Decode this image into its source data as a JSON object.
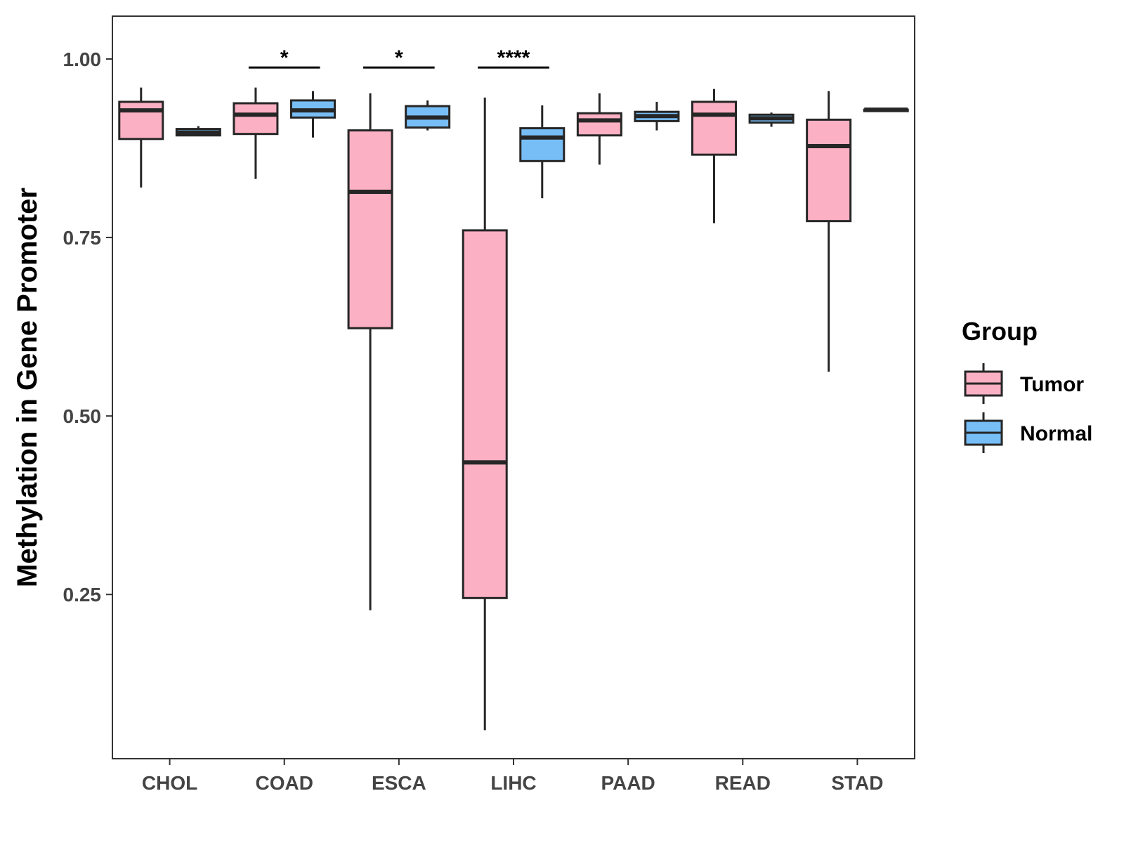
{
  "chart_data": {
    "type": "boxplot",
    "title": "",
    "xlabel": "",
    "ylabel": "Methylation in Gene Promoter",
    "ylim": [
      0.02,
      1.06
    ],
    "yticks": [
      0.25,
      0.5,
      0.75,
      1.0
    ],
    "ytick_labels": [
      "0.25",
      "0.50",
      "0.75",
      "1.00"
    ],
    "categories": [
      "CHOL",
      "COAD",
      "ESCA",
      "LIHC",
      "PAAD",
      "READ",
      "STAD"
    ],
    "legend": {
      "title": "Group",
      "position": "right",
      "entries": [
        {
          "name": "Tumor",
          "color": "#FBB0C3"
        },
        {
          "name": "Normal",
          "color": "#78BEF6"
        }
      ]
    },
    "series": [
      {
        "name": "Tumor",
        "color": "#FBB0C3",
        "boxes": [
          {
            "category": "CHOL",
            "min": 0.82,
            "q1": 0.888,
            "median": 0.928,
            "q3": 0.94,
            "max": 0.96
          },
          {
            "category": "COAD",
            "min": 0.832,
            "q1": 0.895,
            "median": 0.922,
            "q3": 0.938,
            "max": 0.96
          },
          {
            "category": "ESCA",
            "min": 0.228,
            "q1": 0.623,
            "median": 0.814,
            "q3": 0.9,
            "max": 0.952
          },
          {
            "category": "LIHC",
            "min": 0.06,
            "q1": 0.245,
            "median": 0.435,
            "q3": 0.76,
            "max": 0.946
          },
          {
            "category": "PAAD",
            "min": 0.852,
            "q1": 0.893,
            "median": 0.914,
            "q3": 0.924,
            "max": 0.952
          },
          {
            "category": "READ",
            "min": 0.77,
            "q1": 0.866,
            "median": 0.922,
            "q3": 0.94,
            "max": 0.958
          },
          {
            "category": "STAD",
            "min": 0.562,
            "q1": 0.773,
            "median": 0.878,
            "q3": 0.915,
            "max": 0.955
          }
        ]
      },
      {
        "name": "Normal",
        "color": "#78BEF6",
        "boxes": [
          {
            "category": "CHOL",
            "min": 0.893,
            "q1": 0.893,
            "median": 0.897,
            "q3": 0.902,
            "max": 0.906
          },
          {
            "category": "COAD",
            "min": 0.89,
            "q1": 0.918,
            "median": 0.928,
            "q3": 0.942,
            "max": 0.955
          },
          {
            "category": "ESCA",
            "min": 0.9,
            "q1": 0.904,
            "median": 0.918,
            "q3": 0.934,
            "max": 0.942
          },
          {
            "category": "LIHC",
            "min": 0.805,
            "q1": 0.857,
            "median": 0.89,
            "q3": 0.903,
            "max": 0.935
          },
          {
            "category": "PAAD",
            "min": 0.9,
            "q1": 0.913,
            "median": 0.92,
            "q3": 0.926,
            "max": 0.94
          },
          {
            "category": "READ",
            "min": 0.905,
            "q1": 0.911,
            "median": 0.917,
            "q3": 0.922,
            "max": 0.925
          },
          {
            "category": "STAD",
            "min": 0.929,
            "q1": 0.929,
            "median": 0.929,
            "q3": 0.929,
            "max": 0.929
          }
        ]
      }
    ],
    "annotations": [
      {
        "category": "COAD",
        "label": "*"
      },
      {
        "category": "ESCA",
        "label": "*"
      },
      {
        "category": "LIHC",
        "label": "****"
      }
    ]
  }
}
